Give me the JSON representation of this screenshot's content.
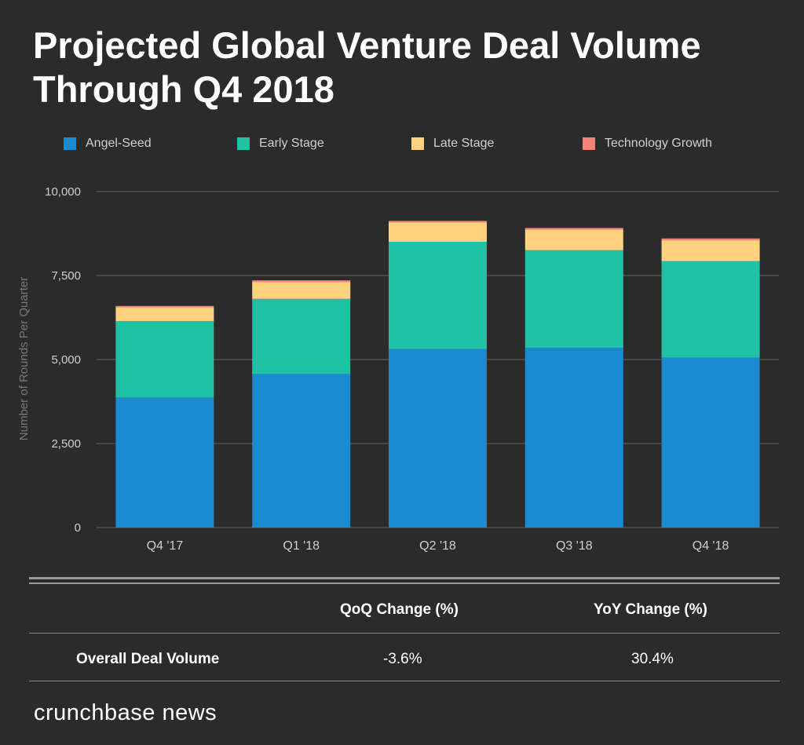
{
  "title_line1": "Projected Global Venture Deal Volume",
  "title_line2": "Through Q4 2018",
  "chart_data": {
    "type": "bar",
    "stacked": true,
    "title": "Projected Global Venture Deal Volume Through Q4 2018",
    "ylabel": "Number of Rounds Per Quarter",
    "xlabel": "",
    "ylim": [
      0,
      10000
    ],
    "yticks": [
      "0",
      "2,500",
      "5,000",
      "7,500",
      "10,000"
    ],
    "ytick_values": [
      0,
      2500,
      5000,
      7500,
      10000
    ],
    "grid": true,
    "legend_position": "top",
    "categories": [
      "Q4 '17",
      "Q1 '18",
      "Q2 '18",
      "Q3 '18",
      "Q4 '18"
    ],
    "series": [
      {
        "name": "Angel-Seed",
        "color": "#1a8ad1",
        "values": [
          3870,
          4570,
          5310,
          5350,
          5060
        ]
      },
      {
        "name": "Early Stage",
        "color": "#20c2a6",
        "values": [
          2275,
          2235,
          3195,
          2905,
          2870
        ]
      },
      {
        "name": "Late Stage",
        "color": "#ffd27f",
        "values": [
          410,
          505,
          575,
          615,
          620
        ]
      },
      {
        "name": "Technology Growth",
        "color": "#f4837a",
        "values": [
          40,
          47,
          47,
          47,
          54
        ]
      }
    ]
  },
  "table": {
    "headers": [
      "QoQ Change (%)",
      "YoY Change (%)"
    ],
    "row_label": "Overall Deal Volume",
    "values": [
      "-3.6%",
      "30.4%"
    ]
  },
  "footer_logo": "crunchbase news"
}
